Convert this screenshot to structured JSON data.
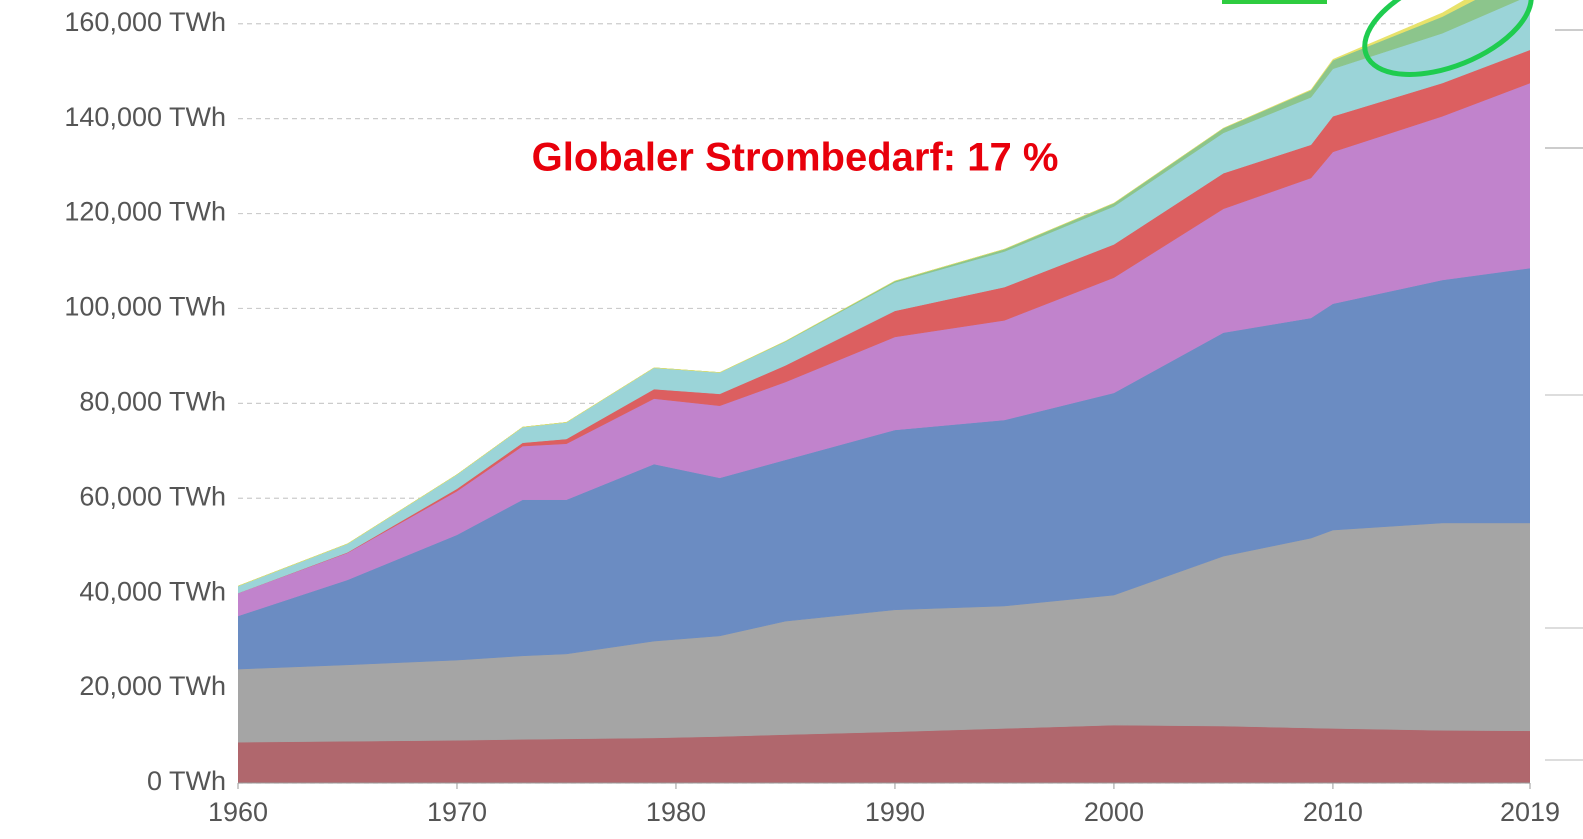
{
  "chart_data": {
    "type": "stacked_area",
    "annotation": "Globaler Strombedarf: 17 %",
    "x": [
      1960,
      1965,
      1970,
      1973,
      1975,
      1979,
      1982,
      1985,
      1990,
      1995,
      2000,
      2005,
      2009,
      2010,
      2015,
      2019
    ],
    "series": [
      {
        "color": "#b0676d",
        "values": [
          8600,
          8800,
          9000,
          9200,
          9300,
          9500,
          9800,
          10200,
          10800,
          11500,
          12200,
          12000,
          11600,
          11500,
          11100,
          11000
        ]
      },
      {
        "color": "#a5a5a5",
        "values": [
          15400,
          16100,
          16900,
          17600,
          17900,
          20400,
          21200,
          23900,
          25700,
          25800,
          27400,
          35800,
          40000,
          41800,
          43700,
          43800
        ]
      },
      {
        "color": "#6b8cc2",
        "values": [
          11200,
          17900,
          26400,
          32900,
          32500,
          37300,
          33300,
          34000,
          37900,
          39200,
          42600,
          47100,
          46400,
          47700,
          51200,
          53700
        ]
      },
      {
        "color": "#c183cc",
        "values": [
          4800,
          5700,
          9200,
          11300,
          11800,
          13800,
          15200,
          16400,
          19600,
          21000,
          24300,
          26100,
          29500,
          32000,
          34500,
          39000
        ]
      },
      {
        "color": "#dc5f60",
        "values": [
          0,
          100,
          500,
          700,
          1000,
          2000,
          2500,
          3500,
          5500,
          7000,
          7000,
          7500,
          7000,
          7500,
          7000,
          7000
        ]
      },
      {
        "color": "#9bd4d8",
        "values": [
          1500,
          1800,
          3000,
          3300,
          3500,
          4500,
          4500,
          5000,
          6000,
          7500,
          8000,
          8500,
          10000,
          10000,
          10500,
          11500
        ]
      },
      {
        "color": "#8cc58c",
        "values": [
          0,
          0,
          0,
          0,
          0,
          0,
          0,
          100,
          300,
          500,
          700,
          1000,
          1500,
          1800,
          3500,
          5000
        ]
      },
      {
        "color": "#e8e26a",
        "values": [
          0,
          0,
          0,
          0,
          0,
          0,
          0,
          0,
          0,
          0,
          0,
          0,
          100,
          200,
          800,
          2000
        ]
      }
    ],
    "xlim": [
      1960,
      2019
    ],
    "xticks": [
      1960,
      1970,
      1980,
      1990,
      2000,
      2010,
      2019
    ],
    "ylim": [
      0,
      165000
    ],
    "yticks": [
      {
        "value": 0,
        "label": "0 TWh"
      },
      {
        "value": 20000,
        "label": "20,000 TWh"
      },
      {
        "value": 40000,
        "label": "40,000 TWh"
      },
      {
        "value": 60000,
        "label": "60,000 TWh"
      },
      {
        "value": 80000,
        "label": "80,000 TWh"
      },
      {
        "value": 100000,
        "label": "100,000 TWh"
      },
      {
        "value": 120000,
        "label": "120,000 TWh"
      },
      {
        "value": 140000,
        "label": "140,000 TWh"
      },
      {
        "value": 160000,
        "label": "160,000 TWh"
      }
    ],
    "grid": true
  }
}
